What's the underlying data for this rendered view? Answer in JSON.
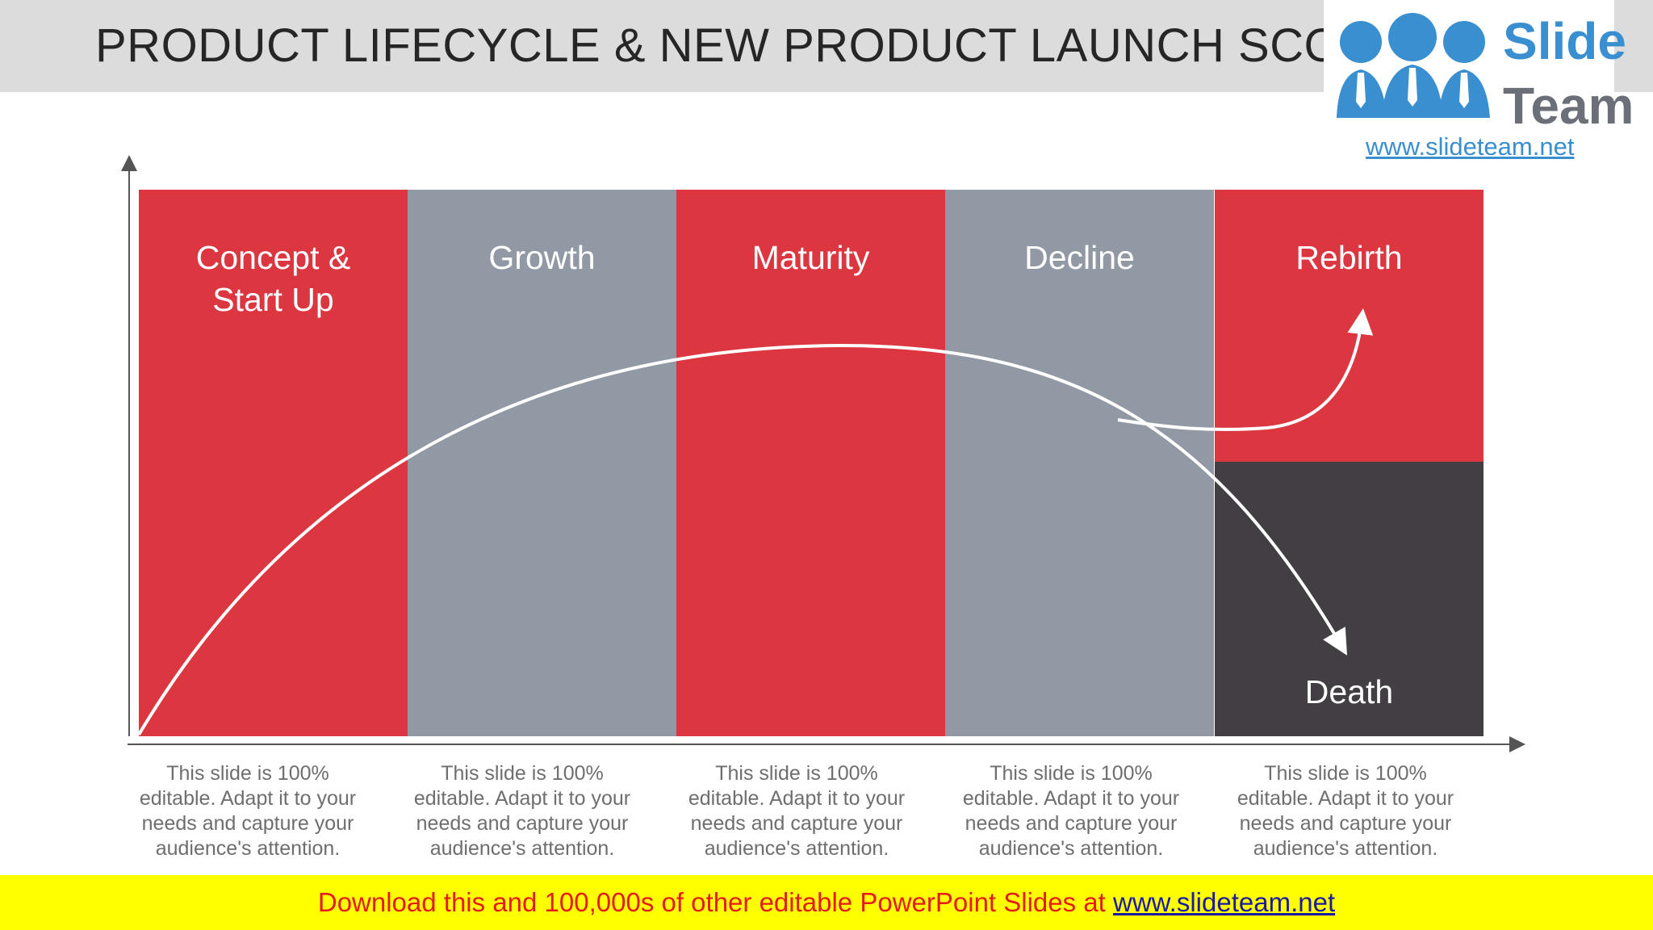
{
  "slide": {
    "title": "PRODUCT LIFECYCLE & NEW PRODUCT LAUNCH SCO"
  },
  "logo": {
    "word1": "Slide",
    "word2": "Team",
    "url": "www.slideteam.net"
  },
  "stages": [
    {
      "label": "Concept &\nStart Up",
      "color": "#dc3640"
    },
    {
      "label": "Growth",
      "color": "#9199a5"
    },
    {
      "label": "Maturity",
      "color": "#dc3640"
    },
    {
      "label": "Decline",
      "color": "#9199a5"
    },
    {
      "label": "Rebirth",
      "color": "#dc3640"
    }
  ],
  "death": {
    "label": "Death",
    "color": "#423e43"
  },
  "descriptions": [
    "This slide is 100% editable. Adapt it to your needs and capture your audience's attention.",
    "This slide is 100% editable. Adapt it to your needs and capture your audience's attention.",
    "This slide is 100% editable. Adapt it to your needs and capture your audience's attention.",
    "This slide is 100% editable. Adapt it to your needs and capture your audience's attention.",
    "This slide is 100% editable. Adapt it to your needs and capture your audience's attention."
  ],
  "footer": {
    "text": "Download this and 100,000s of other editable PowerPoint Slides at ",
    "link": "www.slideteam.net"
  },
  "colors": {
    "accent_red": "#dc3640",
    "slate_gray": "#9199a5",
    "dark": "#423e43",
    "logo_blue": "#3a8fd0",
    "footer_yellow": "#ffff00",
    "footer_red": "#e51b1b"
  }
}
